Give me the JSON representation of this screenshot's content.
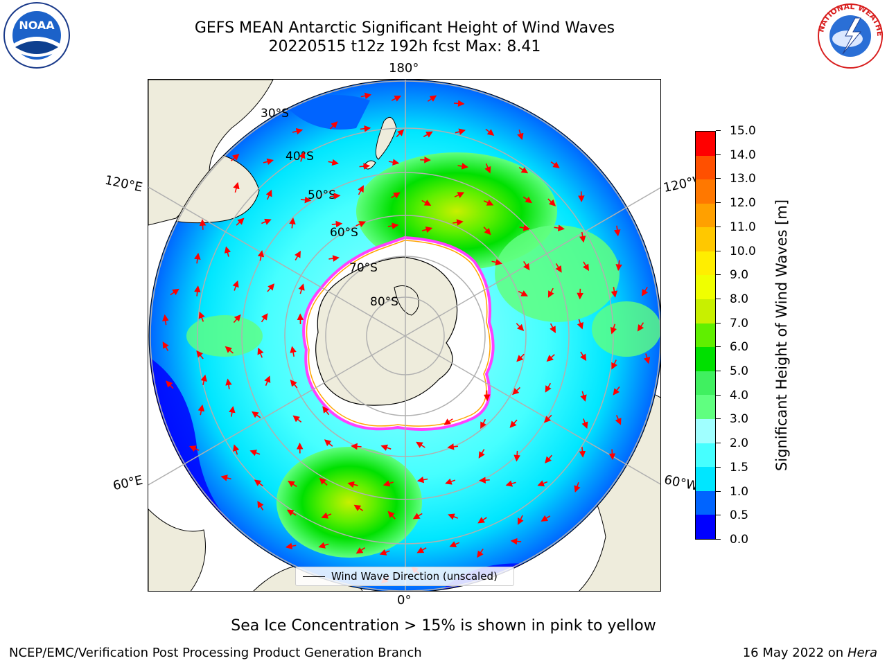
{
  "title": {
    "line1": "GEFS MEAN Antarctic Significant Height of Wind Waves",
    "line2": "20220515 t12z 192h fcst   Max: 8.41"
  },
  "logos": {
    "noaa": {
      "text": "NOAA",
      "icon": "noaa-logo-icon"
    },
    "nws": {
      "text": "NATIONAL WEATHER SERVICE",
      "icon": "nws-logo-icon"
    }
  },
  "map": {
    "projection": "south-polar-stereographic",
    "longitude_labels": {
      "top": "180°",
      "bottom": "0°",
      "left_upper": "120°E",
      "left_lower": "60°E",
      "right_upper": "120°W",
      "right_lower": "60°W"
    },
    "latitude_labels": [
      "30°S",
      "40°S",
      "50°S",
      "60°S",
      "70°S",
      "80°S"
    ],
    "land_color": "#eeecdc",
    "ice_edge_colors": [
      "#ff40ff",
      "#ffa500",
      "#ffff00"
    ],
    "arrow_color": "#ff0000"
  },
  "legend": {
    "label": "Wind Wave Direction (unscaled)"
  },
  "colorbar": {
    "label": "Significant Height of Wind Waves [m]",
    "ticks": [
      "0.0",
      "0.5",
      "1.0",
      "1.5",
      "2.0",
      "3.0",
      "4.0",
      "5.0",
      "6.0",
      "7.0",
      "8.0",
      "9.0",
      "10.0",
      "11.0",
      "12.0",
      "13.0",
      "14.0",
      "15.0"
    ],
    "colors": [
      "#0000ff",
      "#0064ff",
      "#00e6ff",
      "#46ffff",
      "#a0ffff",
      "#60ff80",
      "#40f060",
      "#00e000",
      "#60ef00",
      "#c8f000",
      "#f0ff00",
      "#ffee00",
      "#ffc800",
      "#ffa000",
      "#ff7800",
      "#ff5000",
      "#ff0000"
    ]
  },
  "footer": {
    "note": "Sea Ice Concentration > 15% is shown in pink to yellow",
    "left": "NCEP/EMC/Verification Post Processing Product Generation Branch",
    "right_date": "16 May 2022 on",
    "right_host": "Hera"
  }
}
